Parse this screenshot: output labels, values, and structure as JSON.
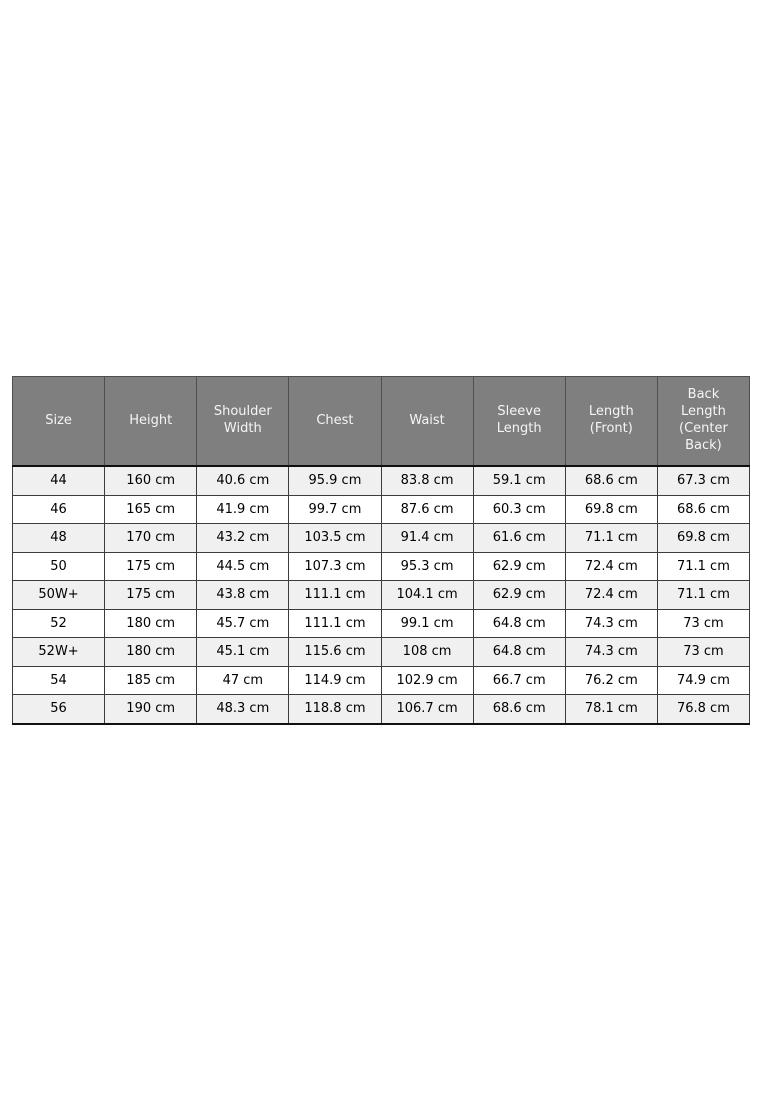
{
  "chart_data": {
    "type": "table",
    "columns": [
      "Size",
      "Height",
      "Shoulder\nWidth",
      "Chest",
      "Waist",
      "Sleeve\nLength",
      "Length\n(Front)",
      "Back\nLength\n(Center\nBack)"
    ],
    "rows": [
      [
        "44",
        "160 cm",
        "40.6 cm",
        "95.9 cm",
        "83.8 cm",
        "59.1 cm",
        "68.6 cm",
        "67.3 cm"
      ],
      [
        "46",
        "165 cm",
        "41.9 cm",
        "99.7 cm",
        "87.6 cm",
        "60.3 cm",
        "69.8 cm",
        "68.6 cm"
      ],
      [
        "48",
        "170 cm",
        "43.2 cm",
        "103.5 cm",
        "91.4 cm",
        "61.6 cm",
        "71.1 cm",
        "69.8 cm"
      ],
      [
        "50",
        "175 cm",
        "44.5 cm",
        "107.3 cm",
        "95.3 cm",
        "62.9 cm",
        "72.4 cm",
        "71.1 cm"
      ],
      [
        "50W+",
        "175 cm",
        "43.8 cm",
        "111.1 cm",
        "104.1 cm",
        "62.9 cm",
        "72.4 cm",
        "71.1 cm"
      ],
      [
        "52",
        "180 cm",
        "45.7 cm",
        "111.1 cm",
        "99.1 cm",
        "64.8 cm",
        "74.3 cm",
        "73 cm"
      ],
      [
        "52W+",
        "180 cm",
        "45.1 cm",
        "115.6 cm",
        "108 cm",
        "64.8 cm",
        "74.3 cm",
        "73 cm"
      ],
      [
        "54",
        "185 cm",
        "47 cm",
        "114.9 cm",
        "102.9 cm",
        "66.7 cm",
        "76.2 cm",
        "74.9 cm"
      ],
      [
        "56",
        "190 cm",
        "48.3 cm",
        "118.8 cm",
        "106.7 cm",
        "68.6 cm",
        "78.1 cm",
        "76.8 cm"
      ]
    ],
    "layout": {
      "striped": true,
      "stripe_start": "first_row",
      "header_position": "top",
      "cell_alignment": "center"
    }
  },
  "style": {
    "page_bg": "#ffffff",
    "header_bg": "#7f7f7f",
    "header_text": "#f5f5f5",
    "header_divider": "#0f0f0f",
    "stripe_row_bg": "#f0f0f0",
    "plain_row_bg": "#ffffff",
    "body_text": "#000000",
    "border_color": "#3c3c3c"
  }
}
